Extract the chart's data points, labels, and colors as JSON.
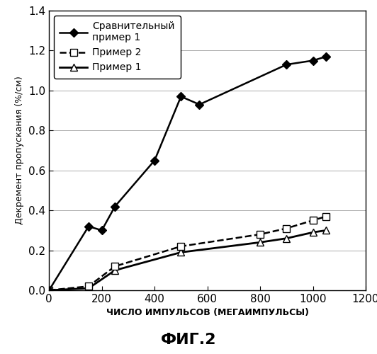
{
  "series": [
    {
      "label": "Сравнительный\nпример 1",
      "x": [
        0,
        150,
        200,
        250,
        400,
        500,
        570,
        900,
        1000,
        1050
      ],
      "y": [
        0.0,
        0.32,
        0.3,
        0.42,
        0.65,
        0.97,
        0.93,
        1.13,
        1.15,
        1.17
      ],
      "linestyle": "-",
      "marker": "D",
      "markersize": 6,
      "color": "#000000",
      "markerfacecolor": "#000000",
      "linewidth": 1.8,
      "zorder": 3
    },
    {
      "label": "Пример 2",
      "x": [
        0,
        150,
        250,
        500,
        800,
        900,
        1000,
        1050
      ],
      "y": [
        0.0,
        0.02,
        0.12,
        0.22,
        0.28,
        0.31,
        0.35,
        0.37
      ],
      "linestyle": "--",
      "marker": "s",
      "markersize": 7,
      "color": "#000000",
      "markerfacecolor": "#ffffff",
      "linewidth": 1.8,
      "zorder": 2
    },
    {
      "label": "Пример 1",
      "x": [
        0,
        150,
        250,
        500,
        800,
        900,
        1000,
        1050
      ],
      "y": [
        0.0,
        0.01,
        0.1,
        0.19,
        0.24,
        0.26,
        0.29,
        0.3
      ],
      "linestyle": "-",
      "marker": "^",
      "markersize": 7,
      "color": "#000000",
      "markerfacecolor": "#ffffff",
      "linewidth": 2.0,
      "zorder": 1
    }
  ],
  "xlabel": "ЧИСЛО ИМПУЛЬСОВ (МЕГАИМПУЛЬСЫ)",
  "ylabel": "Декремент пропускания (%/см)",
  "xlim": [
    0,
    1200
  ],
  "ylim": [
    0,
    1.4
  ],
  "xticks": [
    0,
    200,
    400,
    600,
    800,
    1000,
    1200
  ],
  "yticks": [
    0.0,
    0.2,
    0.4,
    0.6,
    0.8,
    1.0,
    1.2,
    1.4
  ],
  "title_below": "ФИГ.2",
  "background_color": "#ffffff",
  "legend_fontsize": 10,
  "axis_label_fontsize": 9,
  "tick_fontsize": 11
}
